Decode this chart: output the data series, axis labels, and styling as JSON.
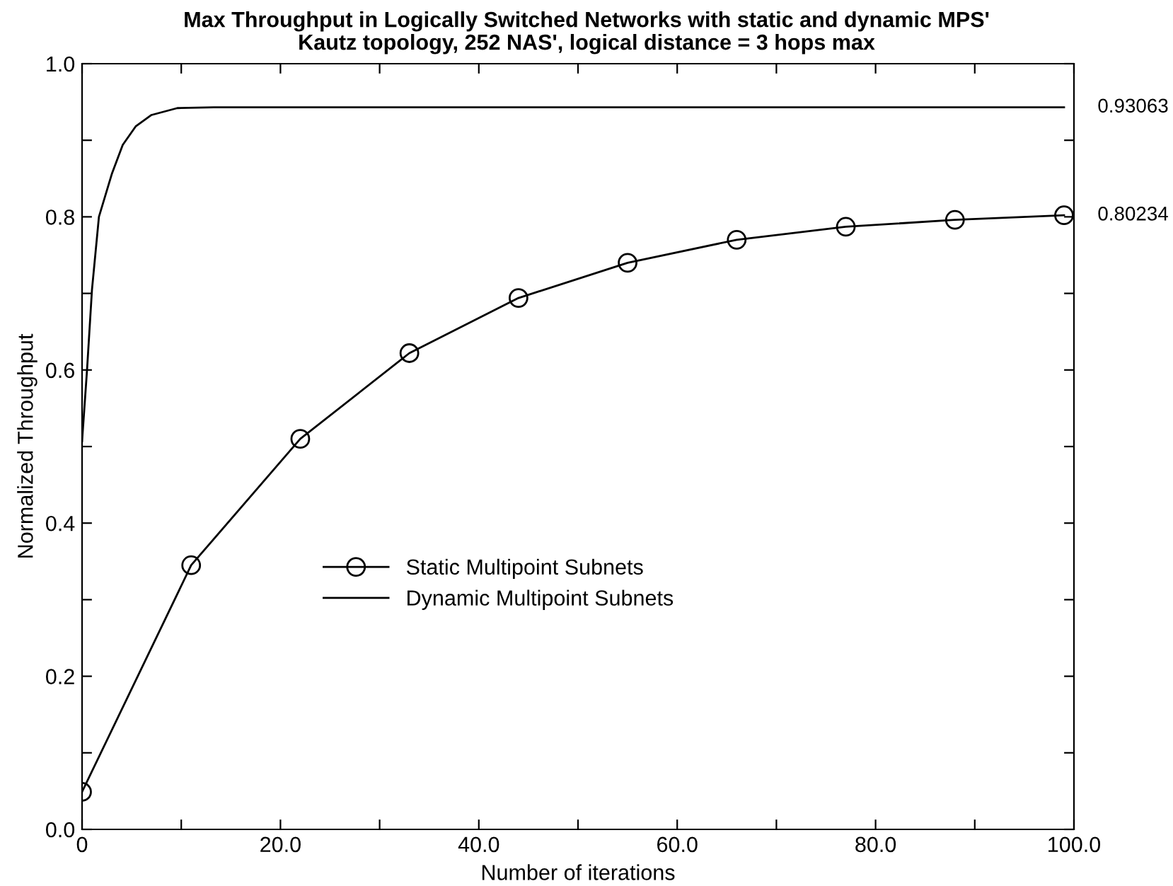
{
  "chart_data": {
    "type": "line",
    "title": "Max Throughput in Logically Switched Networks with static and dynamic MPS'",
    "subtitle": "Kautz topology, 252 NAS', logical distance = 3 hops max",
    "xlabel": "Number of iterations",
    "ylabel": "Normalized Throughput",
    "xlim": [
      0,
      100
    ],
    "ylim": [
      0,
      1
    ],
    "xticks": [
      0,
      {
        "value": 10,
        "label": null
      },
      {
        "value": 20,
        "label": "20.0"
      },
      {
        "value": 30,
        "label": null
      },
      {
        "value": 40,
        "label": "40.0"
      },
      {
        "value": 50,
        "label": null
      },
      {
        "value": 60,
        "label": "60.0"
      },
      {
        "value": 70,
        "label": null
      },
      {
        "value": 80,
        "label": "80.0"
      },
      {
        "value": 90,
        "label": null
      },
      {
        "value": 100,
        "label": "100.0"
      }
    ],
    "yticks": [
      {
        "value": 0,
        "label": "0.0"
      },
      {
        "value": 0.1,
        "label": null
      },
      0.2,
      {
        "value": 0.3,
        "label": null
      },
      0.4,
      {
        "value": 0.5,
        "label": null
      },
      0.6,
      {
        "value": 0.7,
        "label": null
      },
      0.8,
      {
        "value": 0.9,
        "label": null
      },
      {
        "value": 1,
        "label": "1.0"
      }
    ],
    "grid": false,
    "legend": "center",
    "series": [
      {
        "name": "Static Multipoint Subnets",
        "color": "#000000",
        "marker": "circle",
        "x": [
          0,
          11,
          22,
          33,
          44,
          55,
          66,
          77,
          88,
          99
        ],
        "values": [
          0.049,
          0.345,
          0.51,
          0.622,
          0.694,
          0.74,
          0.77,
          0.787,
          0.796,
          0.802
        ]
      },
      {
        "name": "Dynamic Multipoint Subnets",
        "color": "#000000",
        "marker": "none",
        "x": [
          0,
          0.5,
          1,
          1.7,
          3,
          4.1,
          5.4,
          7,
          9.6,
          13.3,
          30,
          60,
          99
        ],
        "values": [
          0.507,
          0.6,
          0.705,
          0.8,
          0.856,
          0.894,
          0.918,
          0.933,
          0.942,
          0.943,
          0.943,
          0.943,
          0.943
        ]
      }
    ],
    "annotations": [
      "0.80234",
      "0.93063"
    ]
  }
}
